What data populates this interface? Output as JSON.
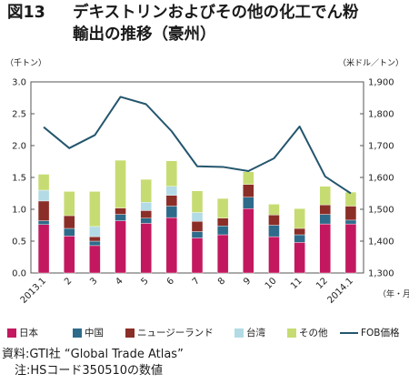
{
  "title": {
    "number": "図13",
    "line1": "デキストリンおよびその他の化工でん粉",
    "line2": "輸出の推移（豪州）"
  },
  "colors": {
    "japan": "#c3185f",
    "china": "#2e6b8a",
    "nz": "#8b2e28",
    "taiwan": "#b3dbe6",
    "other": "#c6dc72",
    "fob": "#24566d"
  },
  "chart_data": {
    "type": "bar",
    "stacked": true,
    "left_unit": "（千トン）",
    "right_unit": "（米ドル／トン）",
    "x_unit": "（年・月）",
    "categories": [
      "2013.1",
      "2",
      "3",
      "4",
      "5",
      "6",
      "7",
      "8",
      "9",
      "10",
      "11",
      "12",
      "2014.1"
    ],
    "y_ticks": [
      "0.0",
      "0.5",
      "1.0",
      "1.5",
      "2.0",
      "2.5",
      "3.0"
    ],
    "y_range": [
      0,
      3.0
    ],
    "y2_ticks": [
      "1,300",
      "1,400",
      "1,500",
      "1,600",
      "1,700",
      "1,800",
      "1,900"
    ],
    "y2_range": [
      1300,
      1900
    ],
    "series": [
      {
        "name": "日本",
        "key": "japan",
        "values": [
          0.76,
          0.58,
          0.43,
          0.82,
          0.78,
          0.87,
          0.55,
          0.6,
          1.01,
          0.57,
          0.48,
          0.77,
          0.77
        ]
      },
      {
        "name": "中国",
        "key": "china",
        "values": [
          0.06,
          0.12,
          0.07,
          0.1,
          0.08,
          0.18,
          0.1,
          0.14,
          0.18,
          0.18,
          0.12,
          0.15,
          0.06
        ]
      },
      {
        "name": "ニュージーランド",
        "key": "nz",
        "values": [
          0.31,
          0.2,
          0.07,
          0.1,
          0.12,
          0.17,
          0.16,
          0.12,
          0.2,
          0.16,
          0.1,
          0.15,
          0.22
        ]
      },
      {
        "name": "台湾",
        "key": "taiwan",
        "values": [
          0.17,
          0.0,
          0.16,
          0.0,
          0.13,
          0.14,
          0.14,
          0.0,
          0.0,
          0.0,
          0.0,
          0.0,
          0.0
        ]
      },
      {
        "name": "その他",
        "key": "other",
        "values": [
          0.25,
          0.38,
          0.55,
          0.75,
          0.36,
          0.4,
          0.34,
          0.31,
          0.2,
          0.17,
          0.31,
          0.29,
          0.22
        ]
      }
    ],
    "line": {
      "name": "FOB価格",
      "key": "fob",
      "values": [
        1758,
        1692,
        1733,
        1853,
        1830,
        1745,
        1635,
        1633,
        1620,
        1660,
        1760,
        1603,
        1550
      ]
    }
  },
  "footer": {
    "source": "資料:GTI社 “Global Trade Atlas”",
    "note": "注:HSコード350510の数値"
  }
}
